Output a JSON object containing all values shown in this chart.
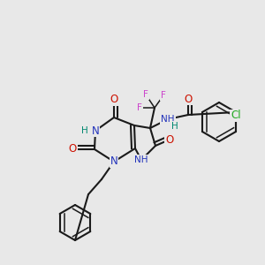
{
  "background_color": "#e8e8e8",
  "figsize": [
    3.0,
    3.0
  ],
  "dpi": 100,
  "bond_lw": 1.5,
  "thin_lw": 1.1,
  "label_fontsize": 8.5,
  "small_fontsize": 7.5,
  "colors": {
    "bond": "#1a1a1a",
    "N": "#2233bb",
    "O": "#cc1100",
    "F": "#cc44cc",
    "Cl": "#22aa22",
    "H": "#008870",
    "bg": "#e8e8e8"
  }
}
